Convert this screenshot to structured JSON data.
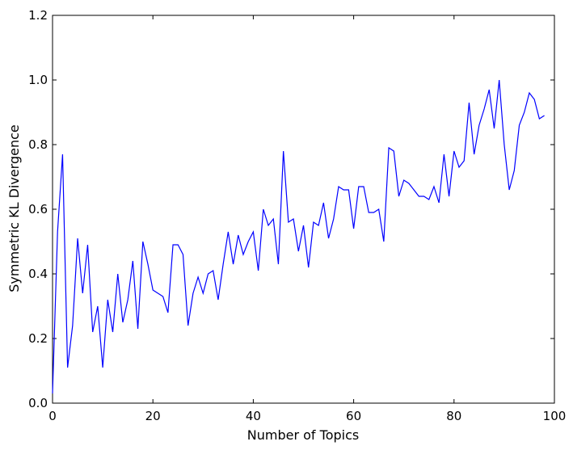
{
  "chart_data": {
    "type": "line",
    "title": "",
    "xlabel": "Number of Topics",
    "ylabel": "Symmetric KL Divergence",
    "xlim": [
      0,
      100
    ],
    "ylim": [
      0.0,
      1.2
    ],
    "xticks": [
      0,
      20,
      40,
      60,
      80,
      100
    ],
    "xtick_labels": [
      "0",
      "20",
      "40",
      "60",
      "80",
      "100"
    ],
    "yticks": [
      0.0,
      0.2,
      0.4,
      0.6,
      0.8,
      1.0,
      1.2
    ],
    "ytick_labels": [
      "0.0",
      "0.2",
      "0.4",
      "0.6",
      "0.8",
      "1.0",
      "1.2"
    ],
    "grid": false,
    "line_color": "#0000ff",
    "series": [
      {
        "x": [
          0,
          1,
          2,
          3,
          4,
          5,
          6,
          7,
          8,
          9,
          10,
          11,
          12,
          13,
          14,
          15,
          16,
          17,
          18,
          19,
          20,
          21,
          22,
          23,
          24,
          25,
          26,
          27,
          28,
          29,
          30,
          31,
          32,
          33,
          34,
          35,
          36,
          37,
          38,
          39,
          40,
          41,
          42,
          43,
          44,
          45,
          46,
          47,
          48,
          49,
          50,
          51,
          52,
          53,
          54,
          55,
          56,
          57,
          58,
          59,
          60,
          61,
          62,
          63,
          64,
          65,
          66,
          67,
          68,
          69,
          70,
          71,
          72,
          73,
          74,
          75,
          76,
          77,
          78,
          79,
          80,
          81,
          82,
          83,
          84,
          85,
          86,
          87,
          88,
          89,
          90,
          91,
          92,
          93,
          94,
          95,
          96,
          97,
          98
        ],
        "values": [
          0.03,
          0.53,
          0.77,
          0.11,
          0.24,
          0.51,
          0.34,
          0.49,
          0.22,
          0.3,
          0.11,
          0.32,
          0.22,
          0.4,
          0.25,
          0.32,
          0.44,
          0.23,
          0.5,
          0.43,
          0.35,
          0.34,
          0.33,
          0.28,
          0.49,
          0.49,
          0.46,
          0.24,
          0.34,
          0.39,
          0.34,
          0.4,
          0.41,
          0.32,
          0.43,
          0.53,
          0.43,
          0.52,
          0.46,
          0.5,
          0.53,
          0.41,
          0.6,
          0.55,
          0.57,
          0.43,
          0.78,
          0.56,
          0.57,
          0.47,
          0.55,
          0.42,
          0.56,
          0.55,
          0.62,
          0.51,
          0.57,
          0.67,
          0.66,
          0.66,
          0.54,
          0.67,
          0.67,
          0.59,
          0.59,
          0.6,
          0.5,
          0.79,
          0.78,
          0.64,
          0.69,
          0.68,
          0.66,
          0.64,
          0.64,
          0.63,
          0.67,
          0.62,
          0.77,
          0.64,
          0.78,
          0.73,
          0.75,
          0.93,
          0.77,
          0.86,
          0.91,
          0.97,
          0.85,
          1.0,
          0.8,
          0.66,
          0.72,
          0.86,
          0.9,
          0.96,
          0.94,
          0.88,
          0.89
        ]
      }
    ]
  }
}
